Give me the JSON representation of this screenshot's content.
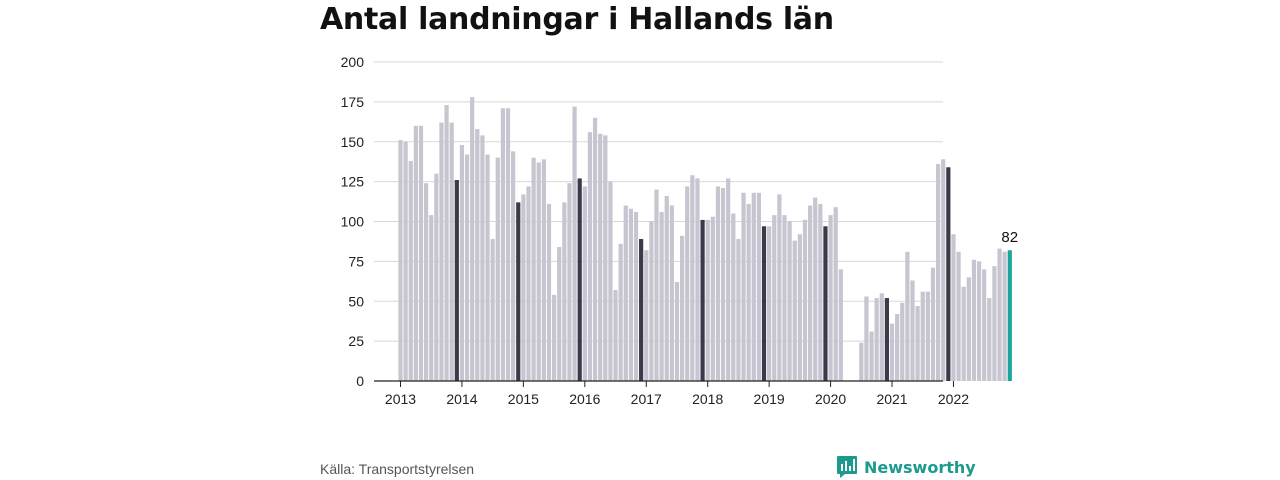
{
  "title": "Antal landningar i Hallands län",
  "source": "Källa: Transportstyrelsen",
  "brand": {
    "name": "Newsworthy",
    "icon": "newsworthy-logo-icon",
    "color": "#1d9a8e"
  },
  "colors": {
    "bar": "#c6c5d0",
    "december": "#3b3a4a",
    "latest": "#1aa69c",
    "grid": "#d8d8d8",
    "axis": "#222222"
  },
  "chart_data": {
    "type": "bar",
    "title": "Antal landningar i Hallands län",
    "xlabel": "",
    "ylabel": "",
    "ylim": [
      0,
      200
    ],
    "y_ticks": [
      "0",
      "25",
      "50",
      "75",
      "100",
      "125",
      "150",
      "175",
      "200"
    ],
    "x_tick_labels": [
      "2013",
      "2014",
      "2015",
      "2016",
      "2017",
      "2018",
      "2019",
      "2020",
      "2021",
      "2022"
    ],
    "grid": true,
    "start": "2013-01",
    "annotation": {
      "label": "82",
      "category": "2022-12"
    },
    "series": [
      {
        "year": "2013",
        "values": [
          151,
          150,
          138,
          160,
          160,
          124,
          104,
          130,
          162,
          173,
          162,
          126
        ]
      },
      {
        "year": "2014",
        "values": [
          148,
          142,
          178,
          158,
          154,
          142,
          89,
          140,
          171,
          171,
          144,
          112
        ]
      },
      {
        "year": "2015",
        "values": [
          117,
          122,
          140,
          137,
          139,
          111,
          54,
          84,
          112,
          124,
          172,
          127
        ]
      },
      {
        "year": "2016",
        "values": [
          122,
          156,
          165,
          155,
          154,
          125,
          57,
          86,
          110,
          108,
          106,
          89
        ]
      },
      {
        "year": "2017",
        "values": [
          82,
          100,
          120,
          106,
          116,
          110,
          62,
          91,
          122,
          129,
          127,
          101
        ]
      },
      {
        "year": "2018",
        "values": [
          101,
          103,
          122,
          121,
          127,
          105,
          89,
          118,
          111,
          118,
          118,
          97
        ]
      },
      {
        "year": "2019",
        "values": [
          97,
          104,
          117,
          104,
          100,
          88,
          92,
          101,
          110,
          115,
          111,
          97
        ]
      },
      {
        "year": "2020",
        "values": [
          104,
          109,
          70,
          0,
          0,
          0,
          24,
          53,
          31,
          52,
          55,
          52
        ]
      },
      {
        "year": "2021",
        "values": [
          36,
          42,
          49,
          81,
          63,
          47,
          56,
          56,
          71,
          136,
          139,
          134
        ]
      },
      {
        "year": "2022",
        "values": [
          92,
          81,
          59,
          65,
          76,
          75,
          70,
          52,
          72,
          83,
          81,
          82
        ]
      }
    ]
  }
}
